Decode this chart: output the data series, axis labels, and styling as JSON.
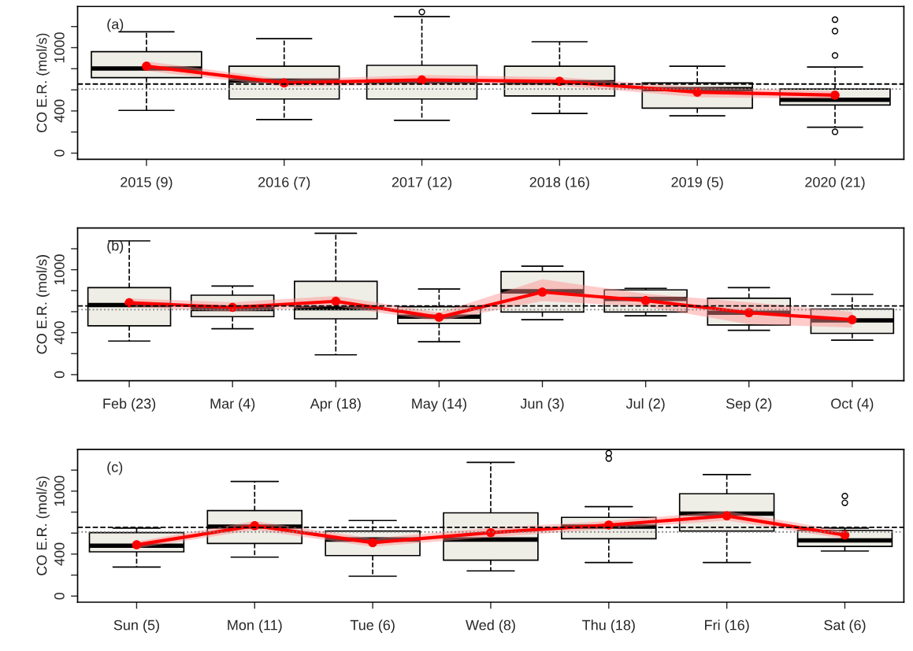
{
  "chart_data": [
    {
      "type": "box",
      "ylabel": "CO E.R. (mol/s)",
      "annotations": [
        "(a)"
      ],
      "categories": [
        "2015 (9)",
        "2016 (7)",
        "2017 (12)",
        "2018 (16)",
        "2019 (5)",
        "2020 (21)"
      ],
      "ylim": [
        -58,
        1390
      ],
      "yticks": [
        0,
        {
          "value": 200,
          "label": null
        },
        400,
        {
          "value": 600,
          "label": null
        },
        {
          "value": 800,
          "label": null
        },
        1000,
        {
          "value": 1200,
          "label": null
        }
      ],
      "grid": false,
      "legend": false,
      "ref_lines": [
        {
          "axis": "y",
          "value": 655,
          "label": null,
          "color": "#000000",
          "line_style": "dashed"
        },
        {
          "axis": "y",
          "value": 607,
          "label": null,
          "color": "#808080",
          "line_style": "dotted"
        }
      ],
      "series": [
        {
          "type": "box",
          "color": "#eeede6",
          "boxes": [
            {
              "low": 405,
              "q1": 716,
              "median": 803,
              "q3": 962,
              "high": 1150
            },
            {
              "low": 318,
              "q1": 513,
              "median": 687,
              "q3": 824,
              "high": 1085
            },
            {
              "low": 311,
              "q1": 513,
              "median": 680,
              "q3": 832,
              "high": 1294,
              "outliers": [
                1338
              ]
            },
            {
              "low": 376,
              "q1": 542,
              "median": 672,
              "q3": 824,
              "high": 1056
            },
            {
              "low": 354,
              "q1": 427,
              "median": 607,
              "q3": 665,
              "high": 824
            },
            {
              "low": 246,
              "q1": 456,
              "median": 506,
              "q3": 607,
              "high": 817,
              "outliers": [
                202,
                926,
                1157,
                1265
              ]
            }
          ]
        },
        {
          "type": "line",
          "color": "#ff0000",
          "marker": "circle",
          "line_style": "solid",
          "values": [
            824,
            665,
            694,
            680,
            578,
            550
          ],
          "lower": [
            780,
            630,
            650,
            640,
            530,
            515
          ],
          "upper": [
            870,
            700,
            740,
            720,
            625,
            590
          ]
        }
      ]
    },
    {
      "type": "box",
      "ylabel": "CO E.R. (mol/s)",
      "annotations": [
        "(b)"
      ],
      "categories": [
        "Feb (23)",
        "Mar (4)",
        "Apr (18)",
        "May (14)",
        "Jun (3)",
        "Jul (2)",
        "Sep (2)",
        "Oct (4)"
      ],
      "ylim": [
        -58,
        1398
      ],
      "yticks": [
        0,
        {
          "value": 200,
          "label": null
        },
        400,
        {
          "value": 600,
          "label": null
        },
        {
          "value": 800,
          "label": null
        },
        1000,
        {
          "value": 1200,
          "label": null
        }
      ],
      "grid": false,
      "legend": false,
      "ref_lines": [
        {
          "axis": "y",
          "value": 655,
          "label": null,
          "color": "#000000",
          "line_style": "dashed"
        },
        {
          "axis": "y",
          "value": 619,
          "label": null,
          "color": "#808080",
          "line_style": "dotted"
        }
      ],
      "series": [
        {
          "type": "box",
          "color": "#eeede6",
          "boxes": [
            {
              "low": 320,
              "q1": 466,
              "median": 663,
              "q3": 830,
              "high": 1275
            },
            {
              "low": 437,
              "q1": 553,
              "median": 626,
              "q3": 757,
              "high": 845
            },
            {
              "low": 189,
              "q1": 532,
              "median": 634,
              "q3": 889,
              "high": 1347
            },
            {
              "low": 313,
              "q1": 488,
              "median": 553,
              "q3": 648,
              "high": 816
            },
            {
              "low": 524,
              "q1": 597,
              "median": 794,
              "q3": 983,
              "high": 1034
            },
            {
              "low": 561,
              "q1": 597,
              "median": 721,
              "q3": 808,
              "high": 823
            },
            {
              "low": 422,
              "q1": 473,
              "median": 590,
              "q3": 728,
              "high": 830
            },
            {
              "low": 328,
              "q1": 393,
              "median": 517,
              "q3": 626,
              "high": 765
            }
          ]
        },
        {
          "type": "line",
          "color": "#ff0000",
          "marker": "circle",
          "line_style": "solid",
          "values": [
            685,
            641,
            699,
            546,
            787,
            706,
            590,
            524
          ],
          "lower": [
            645,
            600,
            650,
            510,
            700,
            650,
            480,
            450
          ],
          "upper": [
            725,
            690,
            750,
            590,
            910,
            770,
            690,
            600
          ]
        }
      ]
    },
    {
      "type": "box",
      "ylabel": "CO E.R. (mol/s)",
      "annotations": [
        "(c)"
      ],
      "categories": [
        "Sun (5)",
        "Mon (11)",
        "Tue (6)",
        "Wed (8)",
        "Thu (18)",
        "Fri (16)",
        "Sat (6)"
      ],
      "ylim": [
        -58,
        1397
      ],
      "yticks": [
        0,
        {
          "value": 200,
          "label": null
        },
        400,
        {
          "value": 600,
          "label": null
        },
        {
          "value": 800,
          "label": null
        },
        1000,
        {
          "value": 1200,
          "label": null
        }
      ],
      "grid": false,
      "legend": false,
      "ref_lines": [
        {
          "axis": "y",
          "value": 655,
          "label": null,
          "color": "#000000",
          "line_style": "dashed"
        },
        {
          "axis": "y",
          "value": 611,
          "label": null,
          "color": "#808080",
          "line_style": "dotted"
        }
      ],
      "series": [
        {
          "type": "box",
          "color": "#eeede6",
          "boxes": [
            {
              "low": 277,
              "q1": 422,
              "median": 480,
              "q3": 604,
              "high": 648
            },
            {
              "low": 371,
              "q1": 502,
              "median": 662,
              "q3": 815,
              "high": 1092
            },
            {
              "low": 189,
              "q1": 386,
              "median": 539,
              "q3": 619,
              "high": 720
            },
            {
              "low": 240,
              "q1": 342,
              "median": 539,
              "q3": 793,
              "high": 1274
            },
            {
              "low": 320,
              "q1": 546,
              "median": 662,
              "q3": 750,
              "high": 852,
              "outliers": [
                1310,
                1361
              ]
            },
            {
              "low": 320,
              "q1": 619,
              "median": 786,
              "q3": 975,
              "high": 1157
            },
            {
              "low": 429,
              "q1": 473,
              "median": 531,
              "q3": 626,
              "high": 648,
              "outliers": [
                888,
                953
              ]
            }
          ]
        },
        {
          "type": "line",
          "color": "#ff0000",
          "marker": "circle",
          "line_style": "solid",
          "values": [
            488,
            670,
            509,
            604,
            677,
            764,
            582
          ],
          "lower": [
            455,
            630,
            470,
            560,
            640,
            720,
            545
          ],
          "upper": [
            520,
            715,
            550,
            650,
            715,
            810,
            620
          ]
        }
      ]
    }
  ]
}
